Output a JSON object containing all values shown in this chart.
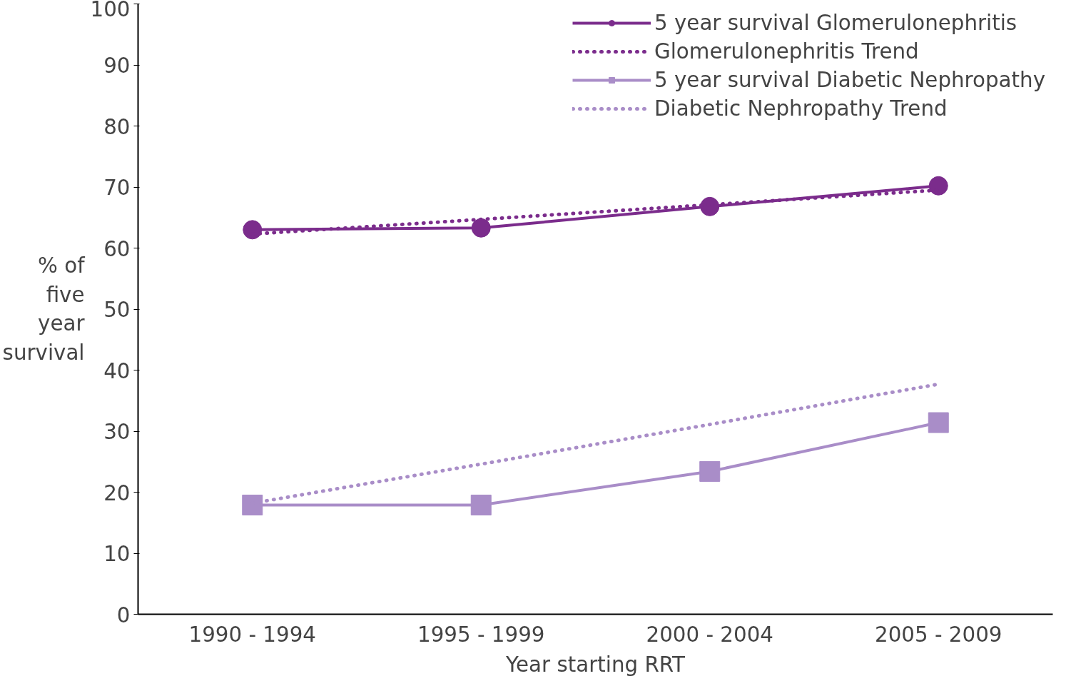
{
  "chart_data": {
    "type": "line",
    "xlabel": "Year starting RRT",
    "ylabel": "% of five year survival",
    "categories": [
      "1990 - 1994",
      "1995 - 1999",
      "2000 - 2004",
      "2005 - 2009"
    ],
    "ylim": [
      0,
      100
    ],
    "yticks": [
      0,
      10,
      20,
      30,
      40,
      50,
      60,
      70,
      80,
      90,
      100
    ],
    "grid": false,
    "legend": "top right",
    "series": [
      {
        "name": "5 year survival Glomerulonephritis",
        "color": "#7b2c8c",
        "marker": "circle",
        "line_style": "solid",
        "values": [
          63.0,
          63.3,
          66.8,
          70.2
        ]
      },
      {
        "name": "Glomerulonephritis Trend",
        "color": "#7b2c8c",
        "marker": "none",
        "line_style": "dotted",
        "values": [
          62.3,
          64.7,
          67.1,
          69.5
        ]
      },
      {
        "name": "5 year survival Diabetic Nephropathy",
        "color": "#a98dc8",
        "marker": "square",
        "line_style": "solid",
        "values": [
          17.9,
          17.9,
          23.4,
          31.4
        ]
      },
      {
        "name": "Diabetic Nephropathy Trend",
        "color": "#a98dc8",
        "marker": "none",
        "line_style": "dotted",
        "values": [
          18.2,
          24.6,
          31.1,
          37.7
        ]
      }
    ]
  }
}
